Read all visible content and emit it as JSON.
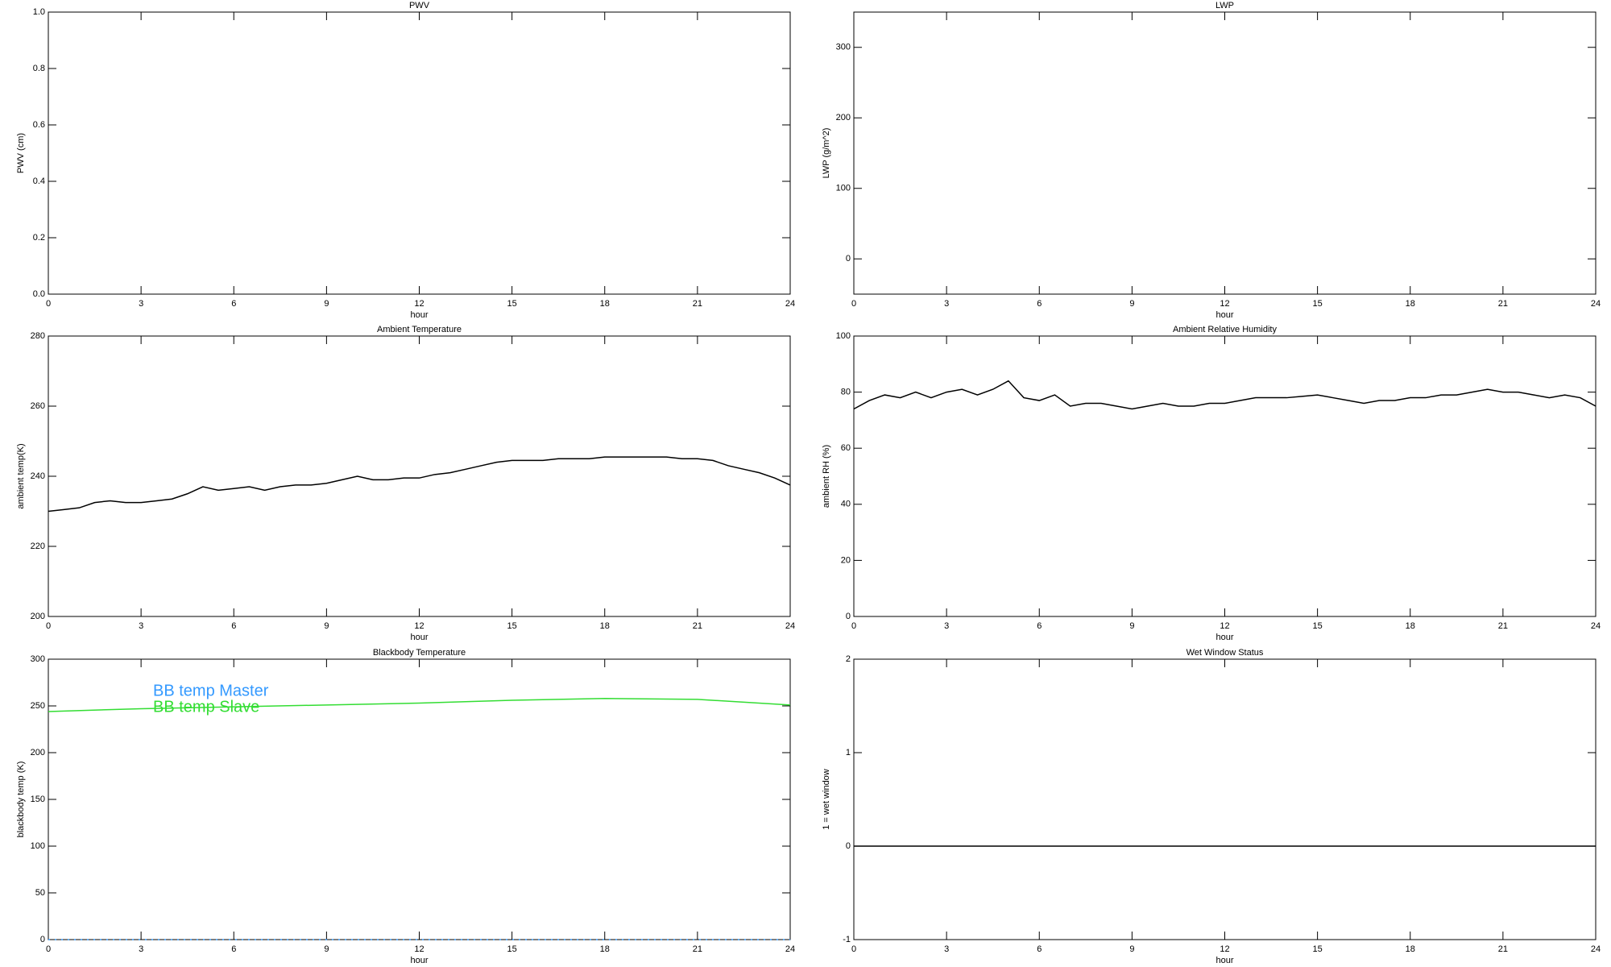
{
  "chart_data": [
    {
      "type": "line",
      "title": "PWV",
      "xlabel": "hour",
      "ylabel": "PWV (cm)",
      "xlim": [
        0,
        24
      ],
      "xticks": [
        0,
        3,
        6,
        9,
        12,
        15,
        18,
        21,
        24
      ],
      "ylim": [
        0,
        1
      ],
      "yticks": [
        {
          "value": 0,
          "label": "0.0"
        },
        0.2,
        0.4,
        0.6,
        0.8,
        {
          "value": 1,
          "label": "1.0"
        }
      ],
      "x": [],
      "series": []
    },
    {
      "type": "line",
      "title": "LWP",
      "xlabel": "hour",
      "ylabel": "LWP (g/m^2)",
      "xlim": [
        0,
        24
      ],
      "xticks": [
        0,
        3,
        6,
        9,
        12,
        15,
        18,
        21,
        24
      ],
      "ylim": [
        -50,
        350
      ],
      "yticks": [
        0,
        100,
        200,
        300
      ],
      "x": [],
      "series": []
    },
    {
      "type": "line",
      "title": "Ambient Temperature",
      "xlabel": "hour",
      "ylabel": "ambient temp(K)",
      "xlim": [
        0,
        24
      ],
      "xticks": [
        0,
        3,
        6,
        9,
        12,
        15,
        18,
        21,
        24
      ],
      "ylim": [
        200,
        280
      ],
      "yticks": [
        200,
        220,
        240,
        260,
        280
      ],
      "x": [
        0,
        0.5,
        1,
        1.5,
        2,
        2.5,
        3,
        3.5,
        4,
        4.5,
        5,
        5.5,
        6,
        6.5,
        7,
        7.5,
        8,
        8.5,
        9,
        9.5,
        10,
        10.5,
        11,
        11.5,
        12,
        12.5,
        13,
        13.5,
        14,
        14.5,
        15,
        15.5,
        16,
        16.5,
        17,
        17.5,
        18,
        18.5,
        19,
        19.5,
        20,
        20.5,
        21,
        21.5,
        22,
        22.5,
        23,
        23.5,
        24
      ],
      "series": [
        {
          "color": "#000000",
          "values": [
            230,
            230.5,
            231,
            232.5,
            233,
            232.5,
            232.5,
            233,
            233.5,
            235,
            237,
            236,
            236.5,
            237,
            236,
            237,
            237.5,
            237.5,
            238,
            239,
            240,
            239,
            239,
            239.5,
            239.5,
            240.5,
            241,
            242,
            243,
            244,
            244.5,
            244.5,
            244.5,
            245,
            245,
            245,
            245.5,
            245.5,
            245.5,
            245.5,
            245.5,
            245,
            245,
            244.5,
            243,
            242,
            241,
            239.5,
            237.5
          ]
        }
      ]
    },
    {
      "type": "line",
      "title": "Ambient Relative Humidity",
      "xlabel": "hour",
      "ylabel": "ambient RH (%)",
      "xlim": [
        0,
        24
      ],
      "xticks": [
        0,
        3,
        6,
        9,
        12,
        15,
        18,
        21,
        24
      ],
      "ylim": [
        0,
        100
      ],
      "yticks": [
        0,
        20,
        40,
        60,
        80,
        100
      ],
      "x": [
        0,
        0.5,
        1,
        1.5,
        2,
        2.5,
        3,
        3.5,
        4,
        4.5,
        5,
        5.5,
        6,
        6.5,
        7,
        7.5,
        8,
        8.5,
        9,
        9.5,
        10,
        10.5,
        11,
        11.5,
        12,
        12.5,
        13,
        13.5,
        14,
        14.5,
        15,
        15.5,
        16,
        16.5,
        17,
        17.5,
        18,
        18.5,
        19,
        19.5,
        20,
        20.5,
        21,
        21.5,
        22,
        22.5,
        23,
        23.5,
        24
      ],
      "series": [
        {
          "color": "#000000",
          "values": [
            74,
            77,
            79,
            78,
            80,
            78,
            80,
            81,
            79,
            81,
            84,
            78,
            77,
            79,
            75,
            76,
            76,
            75,
            74,
            75,
            76,
            75,
            75,
            76,
            76,
            77,
            78,
            78,
            78,
            78.5,
            79,
            78,
            77,
            76,
            77,
            77,
            78,
            78,
            79,
            79,
            80,
            81,
            80,
            80,
            79,
            78,
            79,
            78,
            75
          ]
        }
      ]
    },
    {
      "type": "line",
      "title": "Blackbody Temperature",
      "xlabel": "hour",
      "ylabel": "blackbody temp (K)",
      "xlim": [
        0,
        24
      ],
      "xticks": [
        0,
        3,
        6,
        9,
        12,
        15,
        18,
        21,
        24
      ],
      "ylim": [
        0,
        300
      ],
      "yticks": [
        0,
        50,
        100,
        150,
        200,
        250,
        300
      ],
      "legend": "upper left",
      "x": [
        0,
        3,
        6,
        9,
        12,
        15,
        18,
        21,
        24
      ],
      "series": [
        {
          "name": "BB temp Master",
          "color": "#3399ff",
          "values": [
            0,
            0,
            0,
            0,
            0,
            0,
            0,
            0,
            0
          ]
        },
        {
          "name": "BB temp Slave",
          "color": "#33dd33",
          "values": [
            244,
            247,
            249,
            251,
            253,
            256,
            258,
            257,
            251
          ]
        }
      ]
    },
    {
      "type": "line",
      "title": "Wet Window Status",
      "xlabel": "hour",
      "ylabel": "1 = wet window",
      "xlim": [
        0,
        24
      ],
      "xticks": [
        0,
        3,
        6,
        9,
        12,
        15,
        18,
        21,
        24
      ],
      "ylim": [
        -1,
        2
      ],
      "yticks": [
        -1,
        0,
        1,
        2
      ],
      "x": [
        0,
        24
      ],
      "series": [
        {
          "color": "#000000",
          "values": [
            0,
            0
          ]
        }
      ]
    }
  ]
}
